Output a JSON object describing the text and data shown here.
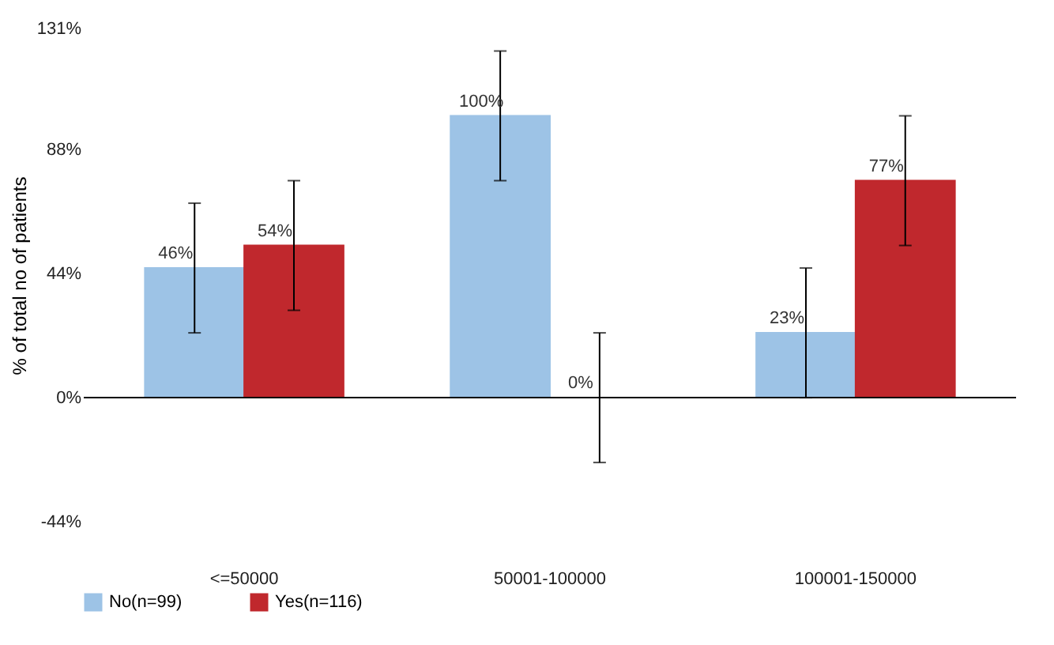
{
  "chart_data": {
    "type": "bar",
    "ylabel": "% of total no of patients",
    "categories": [
      "<=50000",
      "50001-100000",
      "100001-150000"
    ],
    "series": [
      {
        "name": "No(n=99)",
        "color": "#9dc3e6",
        "values": [
          46,
          100,
          23
        ],
        "errors": [
          23,
          23,
          23
        ],
        "value_labels": [
          "46%",
          "100%",
          "23%"
        ]
      },
      {
        "name": "Yes(n=116)",
        "color": "#c0282d",
        "values": [
          54,
          0,
          77
        ],
        "errors": [
          23,
          23,
          23
        ],
        "value_labels": [
          "54%",
          "0%",
          "77%"
        ]
      }
    ],
    "ylim": [
      -44,
      131
    ],
    "yticks": [
      {
        "value": -44,
        "label": "-44%"
      },
      {
        "value": 0,
        "label": "0%"
      },
      {
        "value": 44,
        "label": "44%"
      },
      {
        "value": 88,
        "label": "88%"
      },
      {
        "value": 131,
        "label": "131%"
      }
    ],
    "ref_lines": [
      {
        "axis": "y",
        "value": 0,
        "color": "#000000"
      }
    ],
    "grid": false,
    "legend": "bottom"
  }
}
